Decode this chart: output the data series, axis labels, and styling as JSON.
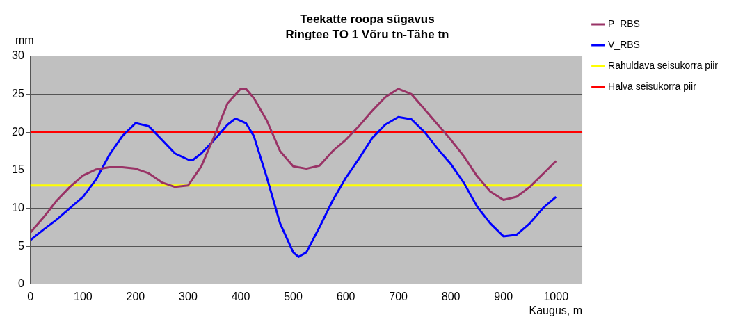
{
  "chart_data": {
    "type": "line",
    "title": "Teekatte roopa sügavus",
    "subtitle": "Ringtee TO 1 Võru tn-Tähe tn",
    "xlabel": "Kaugus, m",
    "ylabel": "mm",
    "xlim": [
      0,
      1050
    ],
    "xticks": [
      0,
      100,
      200,
      300,
      400,
      500,
      600,
      700,
      800,
      900,
      1000
    ],
    "ylim": [
      0,
      30
    ],
    "yticks": [
      0,
      5,
      10,
      15,
      20,
      25,
      30
    ],
    "grid": "y",
    "legend": "right",
    "marker": "none",
    "line_style": "solid",
    "series": [
      {
        "name": "P_RBS",
        "color": "#993366",
        "x": [
          0,
          25,
          50,
          75,
          100,
          125,
          150,
          175,
          200,
          225,
          250,
          275,
          300,
          325,
          350,
          375,
          400,
          410,
          425,
          450,
          475,
          500,
          525,
          550,
          575,
          600,
          625,
          650,
          675,
          700,
          725,
          750,
          775,
          800,
          825,
          850,
          875,
          900,
          925,
          950,
          975,
          1000
        ],
        "values": [
          6.8,
          8.8,
          11,
          12.8,
          14.3,
          15.1,
          15.4,
          15.4,
          15.2,
          14.6,
          13.4,
          12.8,
          13,
          15.5,
          19.5,
          23.8,
          25.7,
          25.7,
          24.5,
          21.5,
          17.5,
          15.5,
          15.2,
          15.6,
          17.5,
          19,
          20.8,
          22.8,
          24.6,
          25.7,
          25,
          23,
          21,
          19,
          16.8,
          14.2,
          12.2,
          11.1,
          11.5,
          12.8,
          14.5,
          16.2
        ]
      },
      {
        "name": "V_RBS",
        "color": "#0000ff",
        "x": [
          0,
          25,
          50,
          75,
          100,
          125,
          150,
          175,
          200,
          225,
          250,
          275,
          300,
          310,
          325,
          350,
          375,
          390,
          410,
          425,
          450,
          475,
          500,
          510,
          525,
          550,
          575,
          600,
          625,
          650,
          675,
          700,
          725,
          750,
          775,
          800,
          825,
          850,
          875,
          900,
          925,
          950,
          975,
          1000
        ],
        "values": [
          5.8,
          7.2,
          8.5,
          10,
          11.5,
          13.8,
          17,
          19.5,
          21.2,
          20.8,
          19,
          17.2,
          16.4,
          16.4,
          17.2,
          19,
          21,
          21.8,
          21.2,
          19.5,
          14,
          8,
          4.2,
          3.6,
          4.2,
          7.5,
          11,
          14,
          16.5,
          19.2,
          21,
          22,
          21.7,
          20,
          17.8,
          15.8,
          13.3,
          10.2,
          8,
          6.3,
          6.5,
          8,
          10,
          11.5
        ]
      }
    ],
    "ref_lines": [
      {
        "axis": "y",
        "value": 13,
        "label": "Rahuldava seisukorra piir",
        "color": "#ffff00"
      },
      {
        "axis": "y",
        "value": 20,
        "label": "Halva seisukorra piir",
        "color": "#ff0000"
      }
    ]
  }
}
